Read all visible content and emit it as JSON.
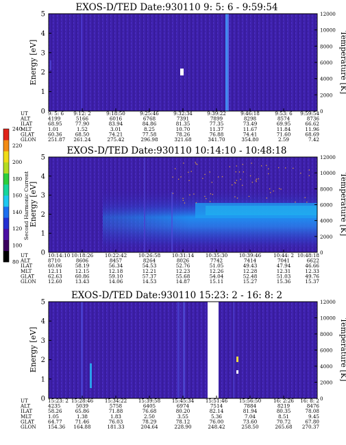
{
  "chart_data": [
    {
      "type": "heatmap",
      "title": "EXOS-D/TED   Date:930110  9: 5: 6 - 9:59:54",
      "ylabel": "Energy [eV]",
      "ylabel_right": "Temperature [K]",
      "ylim": [
        0,
        5
      ],
      "yticks": [
        "0",
        "1",
        "2",
        "3",
        "4",
        "5"
      ],
      "ylim_right": [
        0,
        12000
      ],
      "yticks_right": [
        "0",
        "2000",
        "4000",
        "6000",
        "8000",
        "10000",
        "12000"
      ],
      "time_table": {
        "row_labels": [
          "UT",
          "ALT",
          "ILAT",
          "MLT",
          "GLAT",
          "GLON"
        ],
        "columns": [
          [
            "9: 5: 6",
            "4199",
            "68.95",
            "1.01",
            "60.36",
            "251.87"
          ],
          [
            "9:12: 2",
            "5166",
            "77.90",
            "1.52",
            "68.50",
            "261.24"
          ],
          [
            "9:18:50",
            "6016",
            "83.94",
            "3.01",
            "74.21",
            "275.42"
          ],
          [
            "9:25:46",
            "6768",
            "84.86",
            "8.25",
            "77.58",
            "296.98"
          ],
          [
            "9:32:34",
            "7391",
            "81.35",
            "10.70",
            "78.26",
            "321.68"
          ],
          [
            "9:39:22",
            "7899",
            "77.35",
            "11.37",
            "76.88",
            "341.70"
          ],
          [
            "9:46:18",
            "8298",
            "73.49",
            "11.67",
            "74.41",
            "354.80"
          ],
          [
            "9:53: 6",
            "8574",
            "69.95",
            "11.84",
            "71.60",
            "2.59"
          ],
          [
            "9:59:54",
            "8736",
            "66.62",
            "11.96",
            "68.69",
            "7.42"
          ]
        ]
      }
    },
    {
      "type": "heatmap",
      "title": "EXOS-D/TED   Date:930110  10:14:10 - 10:48:18",
      "ylabel": "Energy [eV]",
      "ylabel_right": "Temperature [K]",
      "ylim": [
        0,
        5
      ],
      "yticks": [
        "0",
        "1",
        "2",
        "3",
        "4",
        "5"
      ],
      "ylim_right": [
        0,
        12000
      ],
      "yticks_right": [
        "0",
        "2000",
        "4000",
        "6000",
        "8000",
        "10000",
        "12000"
      ],
      "time_table": {
        "row_labels": [
          "UT",
          "ALT",
          "ILAT",
          "MLT",
          "GLAT",
          "GLON"
        ],
        "columns": [
          [
            "10:14:10",
            "8710",
            "60.06",
            "12.11",
            "62.63",
            "12.60"
          ],
          [
            "10:18:26",
            "8606",
            "58.19",
            "12.15",
            "60.86",
            "13.43"
          ],
          [
            "10:22:42",
            "8457",
            "56.34",
            "12.18",
            "59.10",
            "14.06"
          ],
          [
            "10:26:58",
            "8264",
            "54.53",
            "12.21",
            "57.37",
            "14.53"
          ],
          [
            "10:31:14",
            "8026",
            "52.76",
            "12.23",
            "55.68",
            "14.87"
          ],
          [
            "10:35:30",
            "7742",
            "51.05",
            "12.26",
            "54.04",
            "15.11"
          ],
          [
            "10:39:46",
            "7414",
            "49.43",
            "12.28",
            "52.48",
            "15.27"
          ],
          [
            "10:44: 2",
            "7041",
            "47.94",
            "12.31",
            "51.03",
            "15.36"
          ],
          [
            "10:48:18",
            "6622",
            "46.66",
            "12.33",
            "49.76",
            "15.37"
          ]
        ]
      },
      "colorbar": {
        "label": "Second Harmonic Current",
        "ticks": [
          "80",
          "100",
          "120",
          "140",
          "160",
          "180",
          "200",
          "220",
          "240"
        ]
      }
    },
    {
      "type": "heatmap",
      "title": "EXOS-D/TED   Date:930110  15:23: 2 - 16: 8: 2",
      "ylabel": "Energy [eV]",
      "ylabel_right": "Temperature [K]",
      "ylim": [
        0,
        5
      ],
      "yticks": [
        "0",
        "1",
        "2",
        "3",
        "4",
        "5"
      ],
      "ylim_right": [
        0,
        12000
      ],
      "yticks_right": [
        "0",
        "2000",
        "4000",
        "6000",
        "8000",
        "10000",
        "12000"
      ],
      "time_table": {
        "row_labels": [
          "UT",
          "ALT",
          "ILAT",
          "MLT",
          "GLAT",
          "GLON"
        ],
        "columns": [
          [
            "15:23: 2",
            "4235",
            "58.26",
            "1.05",
            "64.77",
            "154.36"
          ],
          [
            "15:28:46",
            "5039",
            "65.86",
            "1.38",
            "71.46",
            "164.88"
          ],
          [
            "15:34:22",
            "5758",
            "71.88",
            "1.83",
            "76.03",
            "181.33"
          ],
          [
            "15:39:58",
            "6405",
            "76.68",
            "2.50",
            "78.29",
            "204.64"
          ],
          [
            "15:45:34",
            "6974",
            "80.20",
            "3.55",
            "78.12",
            "228.90"
          ],
          [
            "15:51:46",
            "7514",
            "82.14",
            "5.36",
            "76.00",
            "248.42"
          ],
          [
            "15:56:50",
            "7884",
            "81.94",
            "7.04",
            "73.60",
            "258.50"
          ],
          [
            "16: 2:26",
            "8219",
            "80.35",
            "8.51",
            "70.72",
            "265.68"
          ],
          [
            "16: 8: 2",
            "8476",
            "78.08",
            "9.45",
            "67.80",
            "270.37"
          ]
        ]
      }
    }
  ],
  "colors": {
    "background": "#3c1fa6",
    "colorbar": [
      "#000000",
      "#3a005e",
      "#4b0fa3",
      "#2430d2",
      "#1d6ff0",
      "#1ec8f0",
      "#17d69b",
      "#2ccf3c",
      "#b3dc22",
      "#f0dc17",
      "#f38b14",
      "#e0231a"
    ]
  }
}
